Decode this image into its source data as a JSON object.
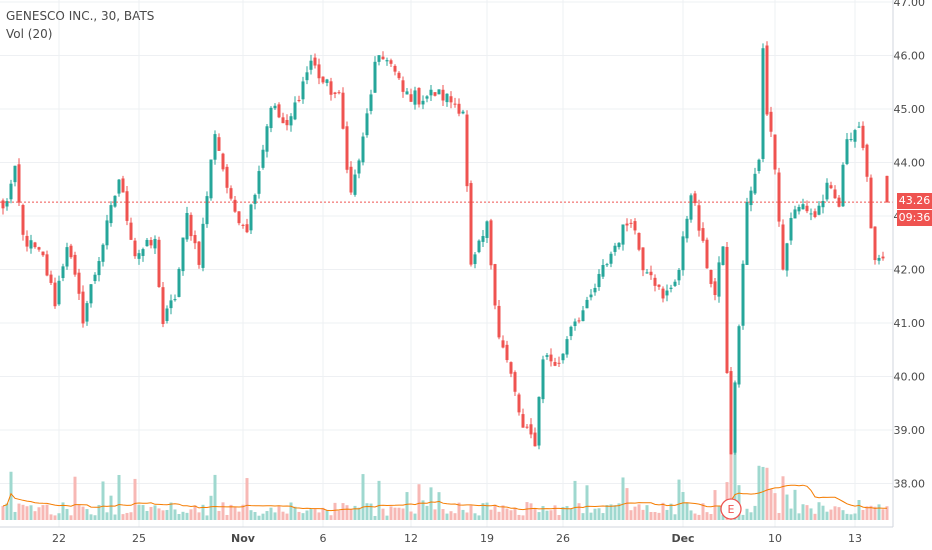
{
  "chart_title": "GENESCO INC., 30, BATS",
  "volume_label": "Vol (20)",
  "last_price_label": "43.26",
  "countdown_label": "09:36",
  "earnings_marker": "E",
  "colors": {
    "up": "#26a69a",
    "down": "#ef5350",
    "up_volume": "#9fd8cf",
    "down_volume": "#f7b8b5",
    "volume_ma": "#f57c00",
    "grid": "#eef0f3",
    "axis_text": "#4a4a4a",
    "price_line": "#ef5350"
  },
  "chart_data": {
    "type": "candlestick",
    "title": "GENESCO INC., 30, BATS",
    "y_axis": {
      "ticks": [
        "38.00",
        "39.00",
        "40.00",
        "41.00",
        "42.00",
        "43.00",
        "44.00",
        "45.00",
        "46.00",
        "47.00"
      ],
      "range": [
        37.7,
        47.0
      ],
      "position": "right"
    },
    "x_axis": {
      "ticks": [
        {
          "label": "22",
          "bold": false,
          "i": 14
        },
        {
          "label": "25",
          "bold": false,
          "i": 34
        },
        {
          "label": "Nov",
          "bold": true,
          "i": 60
        },
        {
          "label": "6",
          "bold": false,
          "i": 80
        },
        {
          "label": "12",
          "bold": false,
          "i": 102
        },
        {
          "label": "19",
          "bold": false,
          "i": 121
        },
        {
          "label": "26",
          "bold": false,
          "i": 140
        },
        {
          "label": "Dec",
          "bold": true,
          "i": 170
        },
        {
          "label": "10",
          "bold": false,
          "i": 193
        },
        {
          "label": "13",
          "bold": false,
          "i": 213
        }
      ]
    },
    "grid": true,
    "last_price": 43.26,
    "earnings_bar_index": 182,
    "bar_count": 222,
    "keypoints": [
      [
        0,
        43.1
      ],
      [
        3,
        43.8
      ],
      [
        5,
        42.6
      ],
      [
        10,
        42.2
      ],
      [
        13,
        41.4
      ],
      [
        16,
        42.5
      ],
      [
        20,
        41.1
      ],
      [
        25,
        42.5
      ],
      [
        29,
        43.7
      ],
      [
        33,
        42.3
      ],
      [
        38,
        42.5
      ],
      [
        40,
        41.0
      ],
      [
        43,
        41.5
      ],
      [
        46,
        43.0
      ],
      [
        49,
        42.2
      ],
      [
        53,
        44.6
      ],
      [
        57,
        43.2
      ],
      [
        61,
        42.8
      ],
      [
        64,
        43.9
      ],
      [
        67,
        45.1
      ],
      [
        71,
        44.6
      ],
      [
        74,
        45.3
      ],
      [
        77,
        45.9
      ],
      [
        80,
        45.5
      ],
      [
        84,
        45.2
      ],
      [
        87,
        43.4
      ],
      [
        90,
        44.4
      ],
      [
        93,
        45.8
      ],
      [
        96,
        46.0
      ],
      [
        100,
        45.3
      ],
      [
        104,
        45.2
      ],
      [
        108,
        45.3
      ],
      [
        111,
        45.2
      ],
      [
        115,
        45.0
      ],
      [
        117,
        42.0
      ],
      [
        121,
        42.8
      ],
      [
        124,
        40.8
      ],
      [
        127,
        40.0
      ],
      [
        130,
        39.0
      ],
      [
        133,
        38.8
      ],
      [
        135,
        40.4
      ],
      [
        139,
        40.2
      ],
      [
        142,
        41.0
      ],
      [
        146,
        41.3
      ],
      [
        150,
        42.0
      ],
      [
        154,
        42.6
      ],
      [
        157,
        43.0
      ],
      [
        160,
        42.1
      ],
      [
        162,
        42.0
      ],
      [
        165,
        41.4
      ],
      [
        169,
        42.0
      ],
      [
        172,
        43.5
      ],
      [
        175,
        42.4
      ],
      [
        178,
        41.5
      ],
      [
        180,
        42.5
      ],
      [
        181,
        40.0
      ],
      [
        182,
        38.6
      ],
      [
        184,
        41.0
      ],
      [
        186,
        43.2
      ],
      [
        189,
        44.0
      ],
      [
        190,
        46.2
      ],
      [
        191,
        45.0
      ],
      [
        193,
        44.0
      ],
      [
        195,
        42.0
      ],
      [
        197,
        43.0
      ],
      [
        200,
        43.2
      ],
      [
        203,
        43.0
      ],
      [
        206,
        43.5
      ],
      [
        209,
        43.2
      ],
      [
        211,
        44.5
      ],
      [
        214,
        44.7
      ],
      [
        216,
        43.6
      ],
      [
        218,
        42.2
      ],
      [
        220,
        42.3
      ],
      [
        221,
        43.26
      ]
    ],
    "volume": {
      "label": "Vol (20)",
      "ma_period": 20
    }
  }
}
